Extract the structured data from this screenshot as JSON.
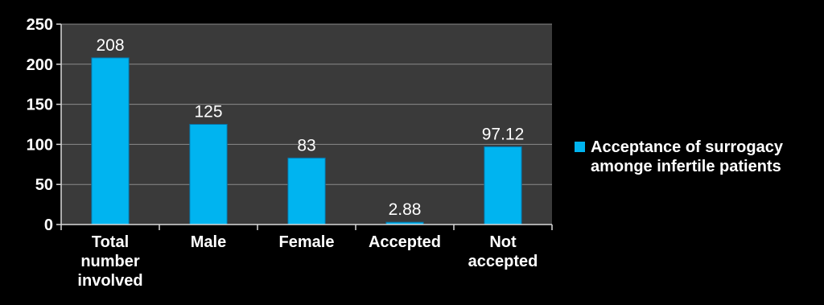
{
  "chart_data": {
    "type": "bar",
    "categories": [
      [
        "Total",
        "number",
        "involved"
      ],
      [
        "Male"
      ],
      [
        "Female"
      ],
      [
        "Accepted"
      ],
      [
        "Not",
        "accepted"
      ]
    ],
    "series": [
      {
        "name": [
          "Acceptance of surrogacy",
          "amonge infertile patients"
        ],
        "values": [
          208,
          125,
          83,
          2.88,
          97.12
        ],
        "color": "#00b4f0"
      }
    ],
    "data_labels": [
      "208",
      "125",
      "83",
      "2.88",
      "97.12"
    ],
    "y_ticks": [
      "0",
      "50",
      "100",
      "150",
      "200",
      "250"
    ],
    "ylim": [
      0,
      250
    ],
    "grid": true,
    "legend_position": "right",
    "title": "",
    "xlabel": "",
    "ylabel": ""
  }
}
